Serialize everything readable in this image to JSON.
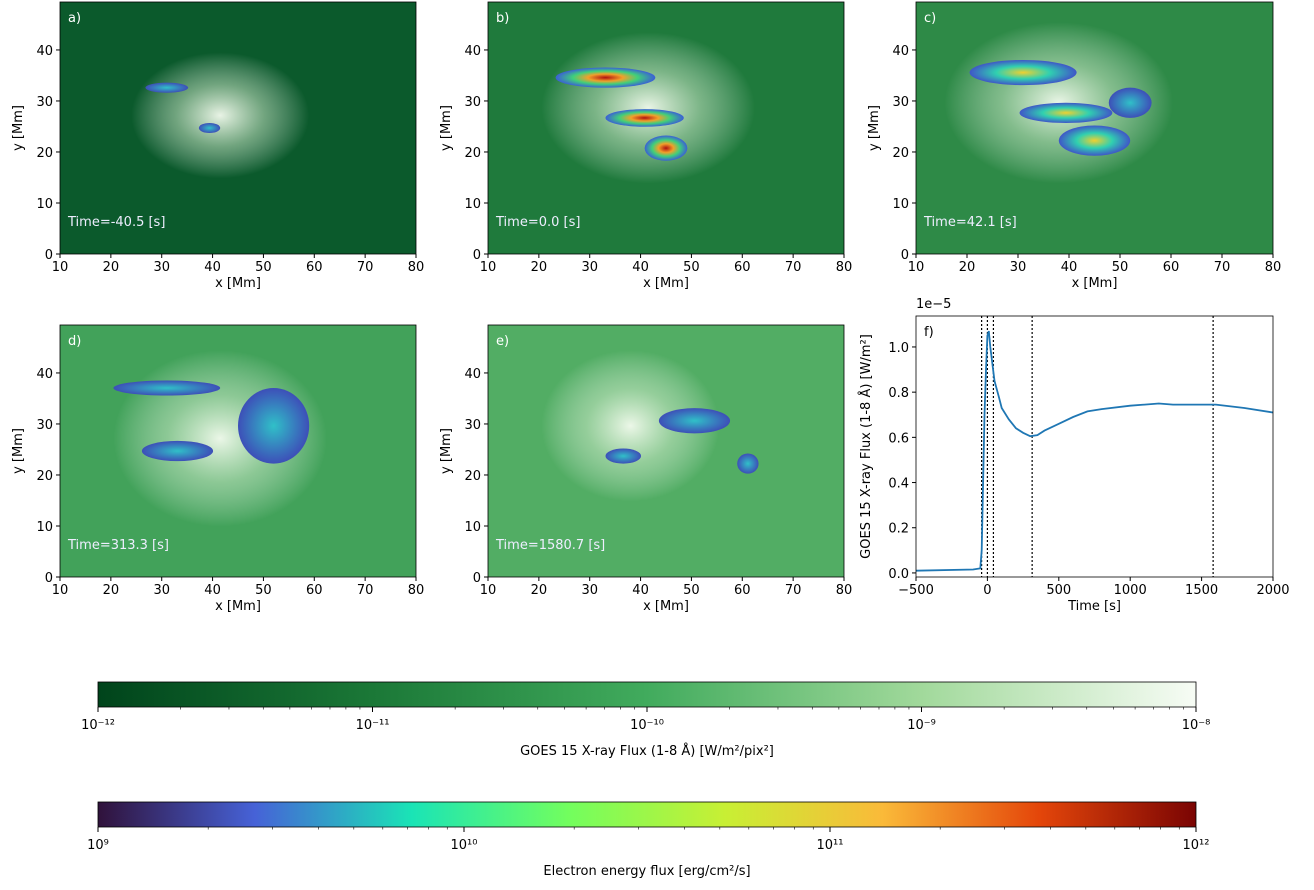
{
  "chart_data": [
    {
      "type": "image",
      "panel_label": "a)",
      "annotation": "Time=-40.5 [s]",
      "xlabel": "x [Mm]",
      "ylabel": "y [Mm]",
      "background": "#0b5a2c",
      "xlim": [
        10,
        80
      ],
      "ylim": [
        0,
        49.4
      ],
      "xticks": [
        10,
        20,
        30,
        40,
        50,
        60,
        70,
        80
      ],
      "yticks": [
        0,
        10,
        20,
        30,
        40
      ]
    },
    {
      "type": "image",
      "panel_label": "b)",
      "annotation": "Time=0.0 [s]",
      "xlabel": "x [Mm]",
      "ylabel": "y [Mm]",
      "background": "#1f7a3c",
      "xlim": [
        10,
        80
      ],
      "ylim": [
        0,
        49.4
      ],
      "xticks": [
        10,
        20,
        30,
        40,
        50,
        60,
        70,
        80
      ],
      "yticks": [
        0,
        10,
        20,
        30,
        40
      ]
    },
    {
      "type": "image",
      "panel_label": "c)",
      "annotation": "Time=42.1 [s]",
      "xlabel": "x [Mm]",
      "ylabel": "y [Mm]",
      "background": "#2e8a47",
      "xlim": [
        10,
        80
      ],
      "ylim": [
        0,
        49.4
      ],
      "xticks": [
        10,
        20,
        30,
        40,
        50,
        60,
        70,
        80
      ],
      "yticks": [
        0,
        10,
        20,
        30,
        40
      ]
    },
    {
      "type": "image",
      "panel_label": "d)",
      "annotation": "Time=313.3 [s]",
      "xlabel": "x [Mm]",
      "ylabel": "y [Mm]",
      "background": "#42a25a",
      "xlim": [
        10,
        80
      ],
      "ylim": [
        0,
        49.4
      ],
      "xticks": [
        10,
        20,
        30,
        40,
        50,
        60,
        70,
        80
      ],
      "yticks": [
        0,
        10,
        20,
        30,
        40
      ]
    },
    {
      "type": "image",
      "panel_label": "e)",
      "annotation": "Time=1580.7 [s]",
      "xlabel": "x [Mm]",
      "ylabel": "y [Mm]",
      "background": "#52ad64",
      "xlim": [
        10,
        80
      ],
      "ylim": [
        0,
        49.4
      ],
      "xticks": [
        10,
        20,
        30,
        40,
        50,
        60,
        70,
        80
      ],
      "yticks": [
        0,
        10,
        20,
        30,
        40
      ]
    },
    {
      "type": "line",
      "panel_label": "f)",
      "xlabel": "Time [s]",
      "ylabel": "GOES 15 X-ray Flux (1-8 Å) [W/m²]",
      "offset_text": "1e−5",
      "x": [
        -500,
        -100,
        -50,
        -40,
        -30,
        -20,
        -10,
        0,
        10,
        20,
        30,
        50,
        80,
        100,
        150,
        200,
        250,
        300,
        350,
        400,
        500,
        600,
        700,
        800,
        1000,
        1200,
        1300,
        1400,
        1600,
        1800,
        2000
      ],
      "series": [
        {
          "color": "#1f77b4",
          "values": [
            0.01,
            0.015,
            0.02,
            0.1,
            0.4,
            0.7,
            0.9,
            1.05,
            1.07,
            1.0,
            0.95,
            0.85,
            0.78,
            0.73,
            0.68,
            0.64,
            0.62,
            0.605,
            0.61,
            0.63,
            0.66,
            0.69,
            0.715,
            0.725,
            0.74,
            0.75,
            0.745,
            0.745,
            0.745,
            0.73,
            0.71
          ]
        }
      ],
      "vlines": [
        -40.5,
        0,
        42.1,
        313.3,
        1580.7
      ],
      "xlim": [
        -500,
        2000
      ],
      "ylim": [
        -0.018,
        1.137
      ],
      "xticks": [
        {
          "value": -500,
          "label": "−500"
        },
        0,
        500,
        1000,
        1500,
        2000
      ],
      "yticks": [
        {
          "value": 0,
          "label": "0.0"
        },
        {
          "value": 0.2,
          "label": "0.2"
        },
        {
          "value": 0.4,
          "label": "0.4"
        },
        {
          "value": 0.6,
          "label": "0.6"
        },
        {
          "value": 0.8,
          "label": "0.8"
        },
        {
          "value": 1.0,
          "label": "1.0"
        }
      ]
    },
    {
      "type": "colorbar",
      "label": "GOES 15 X-ray Flux (1-8 Å) [W/m²/pix²]",
      "log_scale": true,
      "colors": [
        "#00441b",
        "#1b7837",
        "#41ab5d",
        "#a1d99b",
        "#f7fcf5"
      ],
      "xlim": [
        1e-12,
        1e-08
      ],
      "xticks": [
        {
          "value": 1e-12,
          "label": "10⁻¹²"
        },
        {
          "value": 1e-11,
          "label": "10⁻¹¹"
        },
        {
          "value": 1e-10,
          "label": "10⁻¹⁰"
        },
        {
          "value": 1e-09,
          "label": "10⁻⁹"
        },
        {
          "value": 1e-08,
          "label": "10⁻⁸"
        }
      ]
    },
    {
      "type": "colorbar",
      "label": "Electron energy flux [erg/cm²/s]",
      "log_scale": true,
      "colors": [
        "#30123b",
        "#4662d7",
        "#1ae4b6",
        "#72fe5e",
        "#c8ef34",
        "#faba39",
        "#e4460a",
        "#7a0403"
      ],
      "xlim": [
        1000000000.0,
        1000000000000.0
      ],
      "xticks": [
        {
          "value": 1000000000.0,
          "label": "10⁹"
        },
        {
          "value": 10000000000.0,
          "label": "10¹⁰"
        },
        {
          "value": 100000000000.0,
          "label": "10¹¹"
        },
        {
          "value": 1000000000000.0,
          "label": "10¹²"
        }
      ]
    }
  ]
}
